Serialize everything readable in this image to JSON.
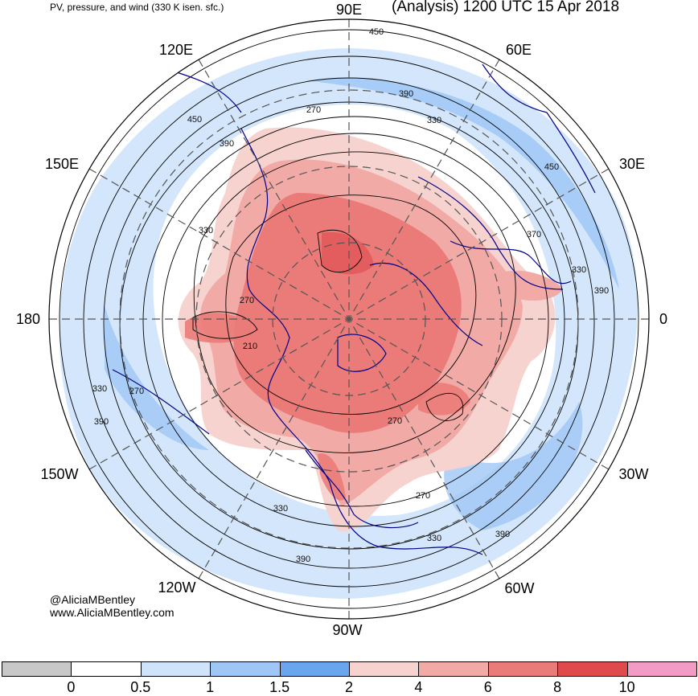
{
  "header": {
    "left_title": "PV, pressure, and wind (330 K isen. sfc.)",
    "right_title": "(Analysis) 1200 UTC 15 Apr 2018"
  },
  "map": {
    "projection": "north-polar-stereographic",
    "longitude_labels": {
      "top": "90E",
      "top_right": "60E",
      "right_upper": "30E",
      "right": "0",
      "right_lower": "30W",
      "bottom_right": "60W",
      "bottom": "90W",
      "bottom_left": "120W",
      "left_lower": "150W",
      "left": "180",
      "left_upper": "150E",
      "top_left": "120E"
    },
    "contour_labels": [
      "450",
      "390",
      "330",
      "270",
      "450",
      "390",
      "330",
      "270",
      "210",
      "330",
      "270",
      "390",
      "450",
      "370",
      "330",
      "390",
      "270",
      "330",
      "390",
      "270",
      "330",
      "390"
    ],
    "colors": {
      "pv_0_05": "#ffffff",
      "pv_05_1": "#cfe3fb",
      "pv_1_15": "#9fc7f6",
      "pv_15_2": "#6aa6ee",
      "pv_2_4": "#f7d3cf",
      "pv_4_6": "#f2aaa6",
      "pv_6_8": "#ea7b79",
      "pv_8_10": "#df4a4c",
      "pv_10": "#f29cc5",
      "coast": "#00008b",
      "contour": "#000000"
    }
  },
  "credit": {
    "handle": "@AliciaMBentley",
    "site": "www.AliciaMBentley.com"
  },
  "colorbar": {
    "labels": [
      "0",
      "0.5",
      "1",
      "1.5",
      "2",
      "4",
      "6",
      "8",
      "10"
    ],
    "colors": [
      "#c8c8c8",
      "#ffffff",
      "#cfe3fb",
      "#9fc7f6",
      "#6aa6ee",
      "#f7d3cf",
      "#f2aaa6",
      "#ea7b79",
      "#df4a4c",
      "#f29cc5"
    ]
  }
}
